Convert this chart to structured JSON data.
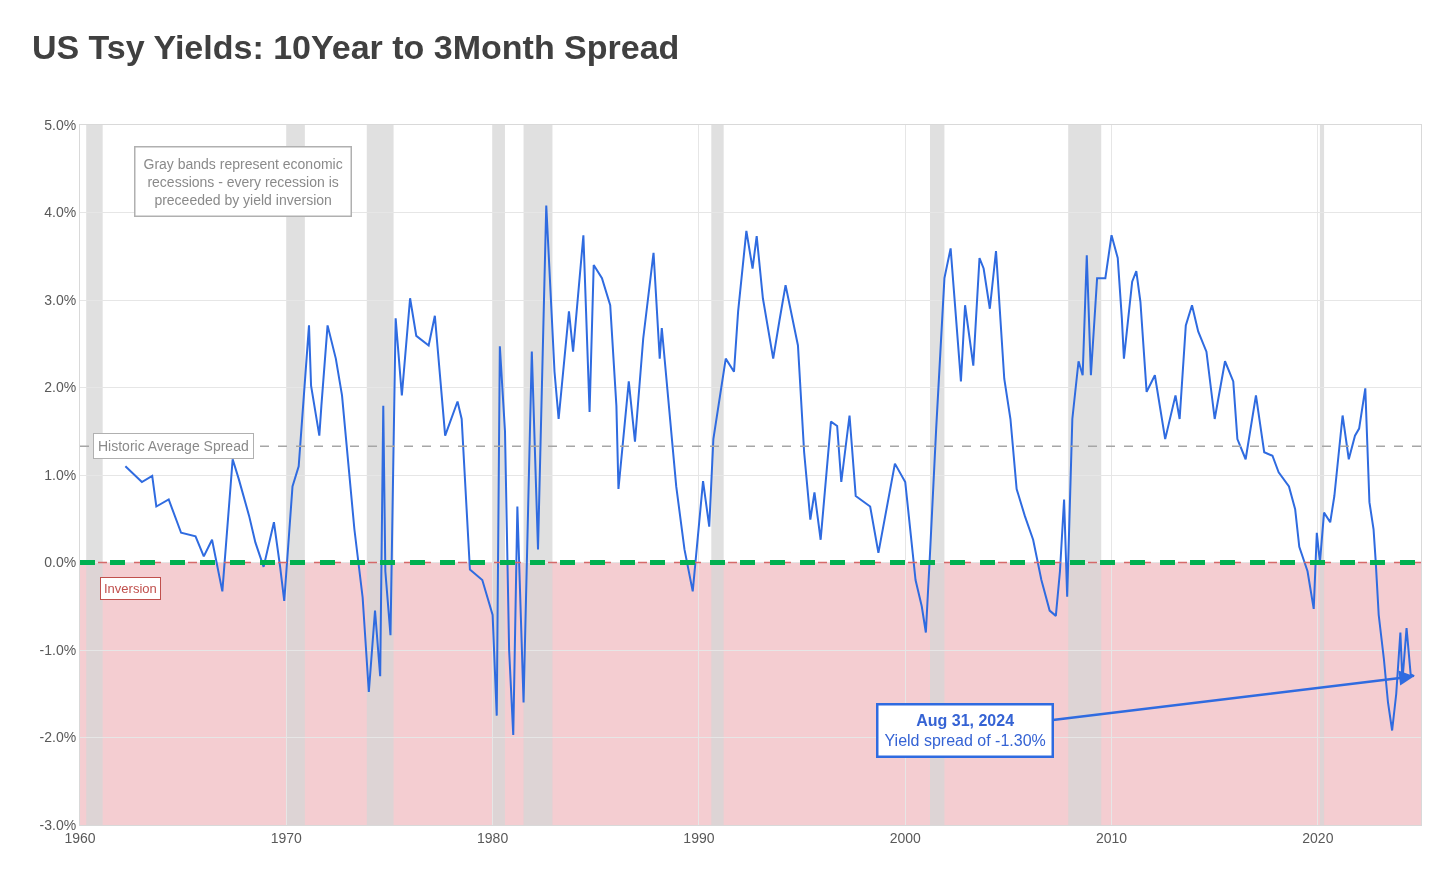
{
  "chart_data": {
    "type": "line",
    "title": "US Tsy Yields: 10Year to 3Month Spread",
    "x": [
      1962.2,
      1963.0,
      1963.5,
      1963.7,
      1964.3,
      1964.9,
      1965.6,
      1966.0,
      1966.4,
      1966.9,
      1967.4,
      1967.7,
      1968.2,
      1968.5,
      1968.9,
      1969.4,
      1969.7,
      1969.9,
      1970.3,
      1970.6,
      1971.1,
      1971.2,
      1971.6,
      1971.7,
      1972.0,
      1972.4,
      1972.7,
      1973.3,
      1973.7,
      1974.0,
      1974.3,
      1974.55,
      1974.7,
      1974.8,
      1975.05,
      1975.3,
      1975.6,
      1976.0,
      1976.3,
      1976.9,
      1977.2,
      1977.7,
      1978.3,
      1978.5,
      1978.9,
      1979.5,
      1980.0,
      1980.2,
      1980.35,
      1980.6,
      1980.8,
      1981.0,
      1981.2,
      1981.5,
      1981.9,
      1982.2,
      1982.6,
      1983.0,
      1983.2,
      1983.7,
      1983.9,
      1984.4,
      1984.7,
      1984.9,
      1985.3,
      1985.7,
      1986.0,
      1986.1,
      1986.6,
      1986.9,
      1987.3,
      1987.8,
      1988.1,
      1988.2,
      1988.9,
      1989.3,
      1989.7,
      1990.2,
      1990.5,
      1990.7,
      1991.3,
      1991.7,
      1991.9,
      1992.3,
      1992.6,
      1992.8,
      1993.1,
      1993.6,
      1993.9,
      1994.2,
      1994.8,
      1995.1,
      1995.4,
      1995.6,
      1995.9,
      1996.4,
      1996.7,
      1996.9,
      1997.3,
      1997.6,
      1998.3,
      1998.7,
      1999.5,
      2000.0,
      2000.5,
      2000.8,
      2001.0,
      2001.2,
      2001.5,
      2001.9,
      2002.2,
      2002.7,
      2002.9,
      2003.3,
      2003.6,
      2003.8,
      2004.1,
      2004.4,
      2004.8,
      2005.1,
      2005.4,
      2005.8,
      2006.2,
      2006.6,
      2007.0,
      2007.3,
      2007.5,
      2007.7,
      2007.85,
      2008.1,
      2008.4,
      2008.6,
      2008.8,
      2009.0,
      2009.3,
      2009.7,
      2010.0,
      2010.3,
      2010.5,
      2010.6,
      2011.0,
      2011.2,
      2011.4,
      2011.7,
      2012.1,
      2012.6,
      2013.1,
      2013.3,
      2013.6,
      2013.9,
      2014.2,
      2014.6,
      2015.0,
      2015.5,
      2015.9,
      2016.1,
      2016.5,
      2017.0,
      2017.4,
      2017.8,
      2018.1,
      2018.6,
      2018.9,
      2019.1,
      2019.5,
      2019.8,
      2019.95,
      2020.1,
      2020.3,
      2020.6,
      2020.8,
      2021.2,
      2021.5,
      2021.8,
      2022.0,
      2022.3,
      2022.5,
      2022.7,
      2022.8,
      2022.95,
      2023.2,
      2023.4,
      2023.6,
      2023.8,
      2024.0,
      2024.1,
      2024.3,
      2024.5,
      2024.67
    ],
    "series": [
      {
        "color": "#2f6be0",
        "values": [
          1.1,
          0.92,
          0.99,
          0.64,
          0.72,
          0.34,
          0.3,
          0.07,
          0.26,
          -0.33,
          1.18,
          0.95,
          0.53,
          0.23,
          -0.05,
          0.46,
          -0.05,
          -0.44,
          0.87,
          1.1,
          2.71,
          2.02,
          1.45,
          1.79,
          2.71,
          2.33,
          1.91,
          0.38,
          -0.4,
          -1.48,
          -0.55,
          -1.3,
          1.79,
          -0.1,
          -0.83,
          2.79,
          1.91,
          3.02,
          2.59,
          2.48,
          2.82,
          1.45,
          1.84,
          1.64,
          -0.08,
          -0.2,
          -0.6,
          -1.75,
          2.47,
          1.5,
          -1.0,
          -1.97,
          0.64,
          -1.6,
          2.41,
          0.15,
          4.08,
          2.18,
          1.64,
          2.87,
          2.41,
          3.74,
          1.72,
          3.4,
          3.25,
          2.94,
          1.79,
          0.84,
          2.07,
          1.38,
          2.56,
          3.54,
          2.33,
          2.68,
          0.87,
          0.15,
          -0.33,
          0.93,
          0.41,
          1.41,
          2.33,
          2.18,
          2.87,
          3.79,
          3.36,
          3.73,
          3.02,
          2.33,
          2.76,
          3.17,
          2.48,
          1.26,
          0.49,
          0.8,
          0.26,
          1.61,
          1.56,
          0.92,
          1.68,
          0.76,
          0.64,
          0.11,
          1.13,
          0.92,
          -0.2,
          -0.5,
          -0.8,
          0.1,
          1.53,
          3.25,
          3.59,
          2.07,
          2.94,
          2.25,
          3.48,
          3.36,
          2.9,
          3.56,
          2.1,
          1.64,
          0.84,
          0.53,
          0.26,
          -0.2,
          -0.55,
          -0.61,
          -0.1,
          0.72,
          -0.39,
          1.64,
          2.3,
          2.14,
          3.51,
          2.14,
          3.25,
          3.25,
          3.74,
          3.48,
          2.79,
          2.33,
          3.21,
          3.33,
          2.98,
          1.95,
          2.14,
          1.41,
          1.91,
          1.64,
          2.71,
          2.94,
          2.64,
          2.41,
          1.64,
          2.3,
          2.07,
          1.41,
          1.18,
          1.91,
          1.26,
          1.22,
          1.03,
          0.87,
          0.61,
          0.18,
          -0.1,
          -0.53,
          0.34,
          0.0,
          0.57,
          0.46,
          0.76,
          1.68,
          1.18,
          1.45,
          1.53,
          1.99,
          0.69,
          0.38,
          0.03,
          -0.6,
          -1.1,
          -1.6,
          -1.92,
          -1.5,
          -0.8,
          -1.35,
          -0.75,
          -1.28,
          -1.3
        ]
      }
    ],
    "xlim": [
      1960,
      2025
    ],
    "xticks": [
      1960,
      1970,
      1980,
      1990,
      2000,
      2010,
      2020
    ],
    "ylim": [
      -3.0,
      5.0
    ],
    "yticks": [
      {
        "value": -3.0,
        "label": "-3.0%"
      },
      {
        "value": -2.0,
        "label": "-2.0%"
      },
      {
        "value": -1.0,
        "label": "-1.0%"
      },
      {
        "value": 0.0,
        "label": "0.0%"
      },
      {
        "value": 1.0,
        "label": "1.0%"
      },
      {
        "value": 2.0,
        "label": "2.0%"
      },
      {
        "value": 3.0,
        "label": "3.0%"
      },
      {
        "value": 4.0,
        "label": "4.0%"
      },
      {
        "value": 5.0,
        "label": "5.0%"
      }
    ],
    "grid": true,
    "bands": [
      {
        "axis": "y",
        "from": -3.0,
        "to": 0.0,
        "label": "Inversion",
        "color": "#f4cdd1"
      },
      {
        "axis": "x",
        "from": 1960.3,
        "to": 1961.1,
        "color": "#d6d6d6"
      },
      {
        "axis": "x",
        "from": 1970.0,
        "to": 1970.9,
        "color": "#d6d6d6"
      },
      {
        "axis": "x",
        "from": 1973.9,
        "to": 1975.2,
        "color": "#d6d6d6"
      },
      {
        "axis": "x",
        "from": 1980.0,
        "to": 1980.6,
        "color": "#d6d6d6"
      },
      {
        "axis": "x",
        "from": 1981.5,
        "to": 1982.9,
        "color": "#d6d6d6"
      },
      {
        "axis": "x",
        "from": 1990.6,
        "to": 1991.2,
        "color": "#d6d6d6"
      },
      {
        "axis": "x",
        "from": 2001.2,
        "to": 2001.9,
        "color": "#d6d6d6"
      },
      {
        "axis": "x",
        "from": 2007.9,
        "to": 2009.5,
        "color": "#d6d6d6"
      },
      {
        "axis": "x",
        "from": 2020.1,
        "to": 2020.3,
        "color": "#d6d6d6"
      }
    ],
    "ref_lines": [
      {
        "axis": "y",
        "value": 1.33,
        "label": "Historic Average Spread",
        "color": "#a6a6a6",
        "line_style": "dashed"
      },
      {
        "axis": "y",
        "value": 0.0,
        "color": "#d46a6a",
        "line_style": "dashed"
      },
      {
        "axis": "y",
        "value": 0.0,
        "color": "#00b050",
        "line_style": "dashed"
      }
    ],
    "annotations": [
      "Gray bands represent economic\nrecessions - every recession is\npreceeded by yield inversion",
      {
        "text": "Aug 31, 2024\nYield spread of -1.30%",
        "x": 2024.67,
        "y": -1.3
      }
    ]
  }
}
